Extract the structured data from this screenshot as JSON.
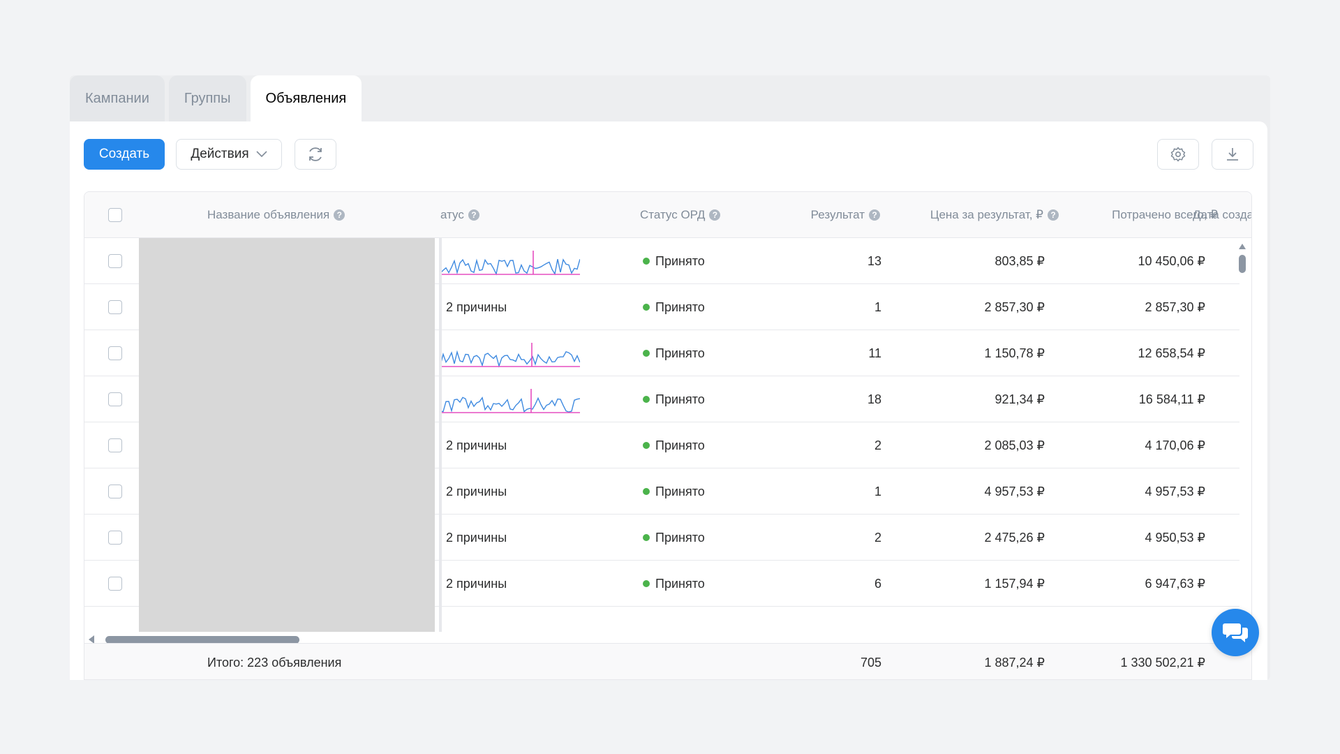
{
  "tabs": [
    {
      "label": "Кампании",
      "active": false
    },
    {
      "label": "Группы",
      "active": false
    },
    {
      "label": "Объявления",
      "active": true
    }
  ],
  "toolbar": {
    "create_label": "Создать",
    "actions_label": "Действия",
    "refresh_icon": "refresh-icon",
    "settings_icon": "gear-icon",
    "download_icon": "download-icon"
  },
  "columns": {
    "name": "Название объявления",
    "status": "атус",
    "ord_status": "Статус ОРД",
    "result": "Результат",
    "price": "Цена за результат, ₽",
    "spent": "Потрачено всего, ₽",
    "date": "Дата созда"
  },
  "rows": [
    {
      "status_type": "spark",
      "status_text": "",
      "ord": "Принято",
      "result": "13",
      "price": "803,85 ₽",
      "spent": "10 450,06 ₽"
    },
    {
      "status_type": "text",
      "status_text": "2 причины",
      "ord": "Принято",
      "result": "1",
      "price": "2 857,30 ₽",
      "spent": "2 857,30 ₽"
    },
    {
      "status_type": "spark",
      "status_text": "",
      "ord": "Принято",
      "result": "11",
      "price": "1 150,78 ₽",
      "spent": "12 658,54 ₽"
    },
    {
      "status_type": "spark",
      "status_text": "",
      "ord": "Принято",
      "result": "18",
      "price": "921,34 ₽",
      "spent": "16 584,11 ₽"
    },
    {
      "status_type": "text",
      "status_text": "2 причины",
      "ord": "Принято",
      "result": "2",
      "price": "2 085,03 ₽",
      "spent": "4 170,06 ₽"
    },
    {
      "status_type": "text",
      "status_text": "2 причины",
      "ord": "Принято",
      "result": "1",
      "price": "4 957,53 ₽",
      "spent": "4 957,53 ₽"
    },
    {
      "status_type": "text",
      "status_text": "2 причины",
      "ord": "Принято",
      "result": "2",
      "price": "2 475,26 ₽",
      "spent": "4 950,53 ₽"
    },
    {
      "status_type": "text",
      "status_text": "2 причины",
      "ord": "Принято",
      "result": "6",
      "price": "1 157,94 ₽",
      "spent": "6 947,63 ₽"
    }
  ],
  "footer": {
    "total_label": "Итого: 223 объявления",
    "result": "705",
    "price": "1 887,24 ₽",
    "spent": "1 330 502,21 ₽"
  },
  "colors": {
    "accent": "#2688eb",
    "status_ok": "#4bb34b",
    "spark_blue": "#3f8ae0",
    "spark_pink": "#e64ec0"
  }
}
